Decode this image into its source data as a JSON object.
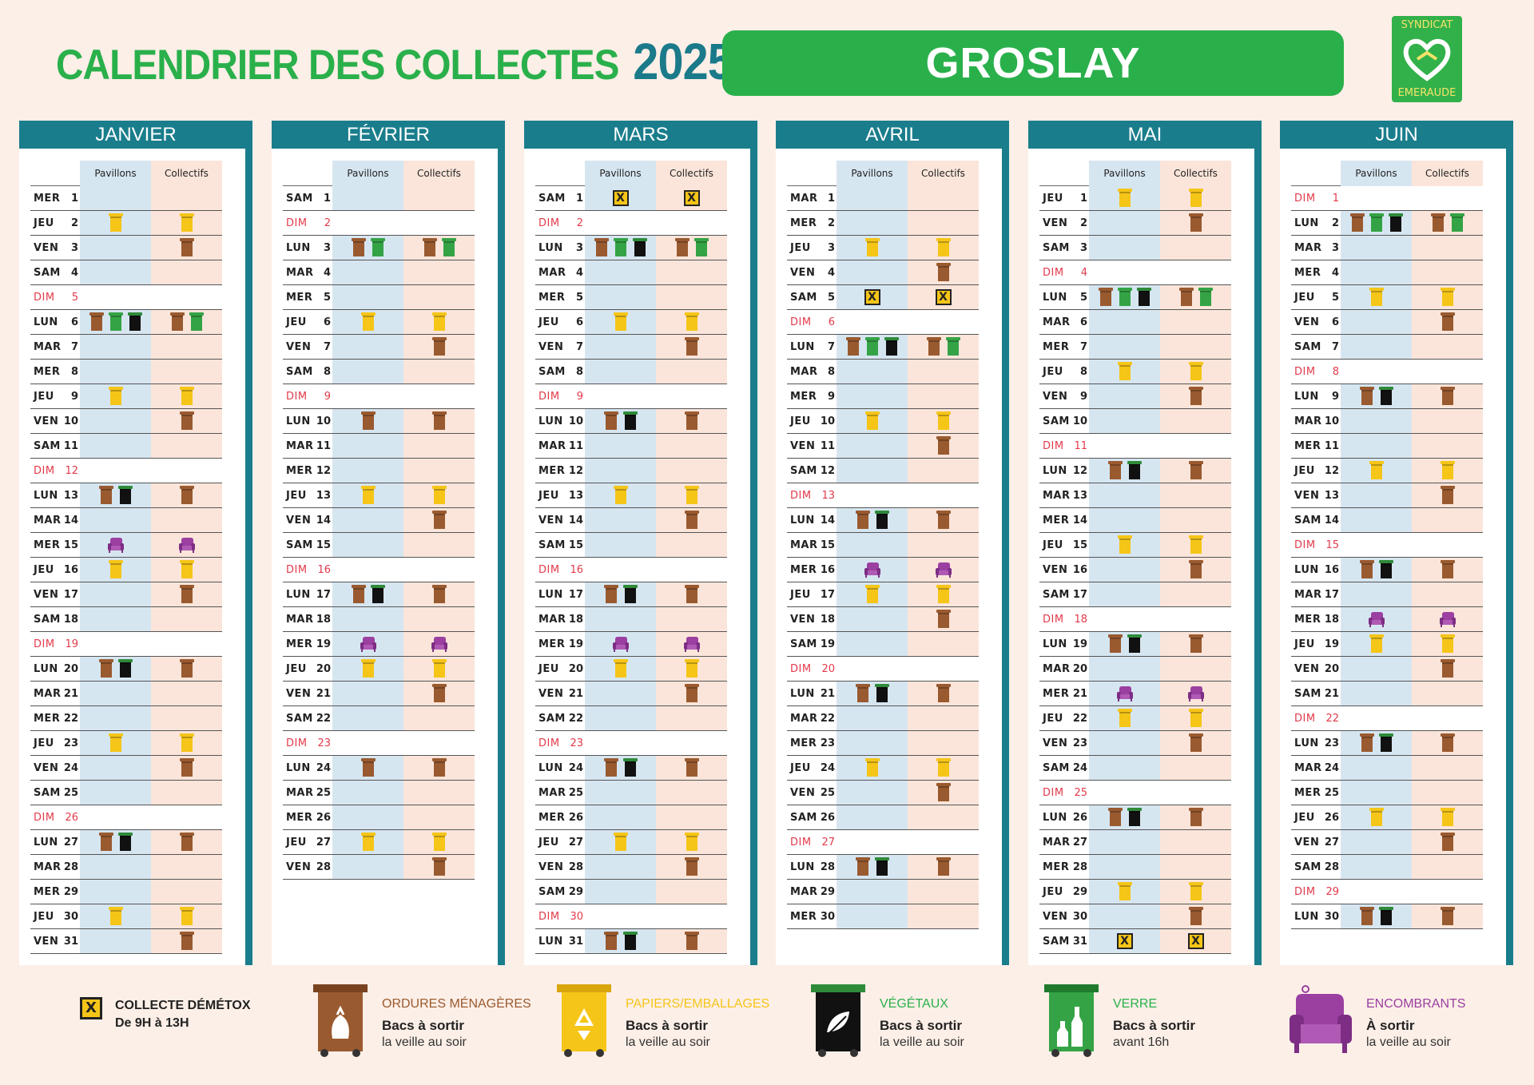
{
  "title": "CALENDRIER DES COLLECTES",
  "year": "2025",
  "city": "GROSLAY",
  "logo": {
    "line1": "SYNDICAT",
    "line2": "EMERAUDE"
  },
  "col_headers": {
    "pavillons": "Pavillons",
    "collectifs": "Collectifs"
  },
  "colors": {
    "ordures": "#9a5a2f",
    "papiers": "#f5c518",
    "vegetaux": "#111111",
    "verre": "#34a345",
    "encombrants": "#9b3fa1",
    "accent": "#1a7d8c",
    "brand": "#2ab04b"
  },
  "months": [
    {
      "name": "JANVIER",
      "start": 3,
      "days": 31,
      "offset": 0,
      "p": {
        "2": "Y",
        "6": "BGK",
        "9": "Y",
        "13": "BK",
        "15": "E",
        "16": "Y",
        "20": "BK",
        "23": "Y",
        "27": "BK",
        "30": "Y"
      },
      "c": {
        "2": "Y",
        "3": "B",
        "6": "BG",
        "9": "Y",
        "10": "B",
        "13": "B",
        "15": "E",
        "16": "Y",
        "17": "B",
        "20": "B",
        "23": "Y",
        "24": "B",
        "27": "B",
        "30": "Y",
        "31": "B"
      }
    },
    {
      "name": "FÉVRIER",
      "start": 6,
      "days": 28,
      "offset": 1,
      "p": {
        "3": "BG",
        "6": "Y",
        "10": "B",
        "13": "Y",
        "17": "BK",
        "19": "E",
        "20": "Y",
        "24": "B",
        "27": "Y"
      },
      "c": {
        "3": "BG",
        "6": "Y",
        "7": "B",
        "10": "B",
        "13": "Y",
        "14": "B",
        "17": "B",
        "19": "E",
        "20": "Y",
        "21": "B",
        "24": "B",
        "27": "Y",
        "28": "B"
      }
    },
    {
      "name": "MARS",
      "start": 6,
      "days": 31,
      "offset": 2,
      "p": {
        "1": "X",
        "3": "BGK",
        "6": "Y",
        "10": "BK",
        "13": "Y",
        "17": "BK",
        "19": "E",
        "20": "Y",
        "24": "BK",
        "27": "Y",
        "31": "BK"
      },
      "c": {
        "1": "X",
        "3": "BG",
        "6": "Y",
        "7": "B",
        "10": "B",
        "13": "Y",
        "14": "B",
        "17": "B",
        "19": "E",
        "20": "Y",
        "21": "B",
        "24": "B",
        "27": "Y",
        "28": "B",
        "31": "B"
      }
    },
    {
      "name": "AVRIL",
      "start": 2,
      "days": 30,
      "offset": 3,
      "p": {
        "3": "Y",
        "5": "X",
        "7": "BGK",
        "10": "Y",
        "14": "BK",
        "16": "E",
        "17": "Y",
        "21": "BK",
        "24": "Y",
        "28": "BK"
      },
      "c": {
        "3": "Y",
        "4": "B",
        "5": "X",
        "7": "BG",
        "10": "Y",
        "11": "B",
        "14": "B",
        "16": "E",
        "17": "Y",
        "18": "B",
        "21": "B",
        "24": "Y",
        "25": "B",
        "28": "B"
      }
    },
    {
      "name": "MAI",
      "start": 4,
      "days": 31,
      "offset": 4,
      "p": {
        "1": "Y",
        "5": "BGK",
        "8": "Y",
        "12": "BK",
        "15": "Y",
        "19": "BK",
        "21": "E",
        "22": "Y",
        "26": "BK",
        "29": "Y",
        "31": "X"
      },
      "c": {
        "1": "Y",
        "2": "B",
        "5": "BG",
        "8": "Y",
        "9": "B",
        "12": "B",
        "15": "Y",
        "16": "B",
        "19": "B",
        "21": "E",
        "22": "Y",
        "23": "B",
        "26": "B",
        "29": "Y",
        "30": "B",
        "31": "X"
      }
    },
    {
      "name": "JUIN",
      "start": 0,
      "days": 30,
      "offset": 5,
      "p": {
        "2": "BGK",
        "5": "Y",
        "9": "BK",
        "12": "Y",
        "16": "BK",
        "18": "E",
        "19": "Y",
        "23": "BK",
        "26": "Y",
        "30": "BK"
      },
      "c": {
        "2": "BG",
        "5": "Y",
        "6": "B",
        "9": "B",
        "12": "Y",
        "13": "B",
        "16": "B",
        "18": "E",
        "19": "Y",
        "20": "B",
        "23": "B",
        "26": "Y",
        "27": "B",
        "30": "B"
      }
    }
  ],
  "day_names": [
    "DIM",
    "LUN",
    "MAR",
    "MER",
    "JEU",
    "VEN",
    "SAM"
  ],
  "legend": {
    "demetox": {
      "label": "COLLECTE DÉMÉTOX",
      "sub": "De 9H à 13H",
      "mark": "X"
    },
    "ordures": {
      "name": "ORDURES MÉNAGÈRES",
      "l1": "Bacs à sortir",
      "l2": "la veille au soir"
    },
    "papiers": {
      "name": "PAPIERS/EMBALLAGES",
      "l1": "Bacs à sortir",
      "l2": "la veille au soir"
    },
    "vegetaux": {
      "name": "VÉGÉTAUX",
      "l1": "Bacs à sortir",
      "l2": "la veille au soir"
    },
    "verre": {
      "name": "VERRE",
      "l1": "Bacs à sortir",
      "l2": "avant 16h"
    },
    "encombrants": {
      "name": "ENCOMBRANTS",
      "l1": "À sortir",
      "l2": "la veille au soir"
    }
  }
}
